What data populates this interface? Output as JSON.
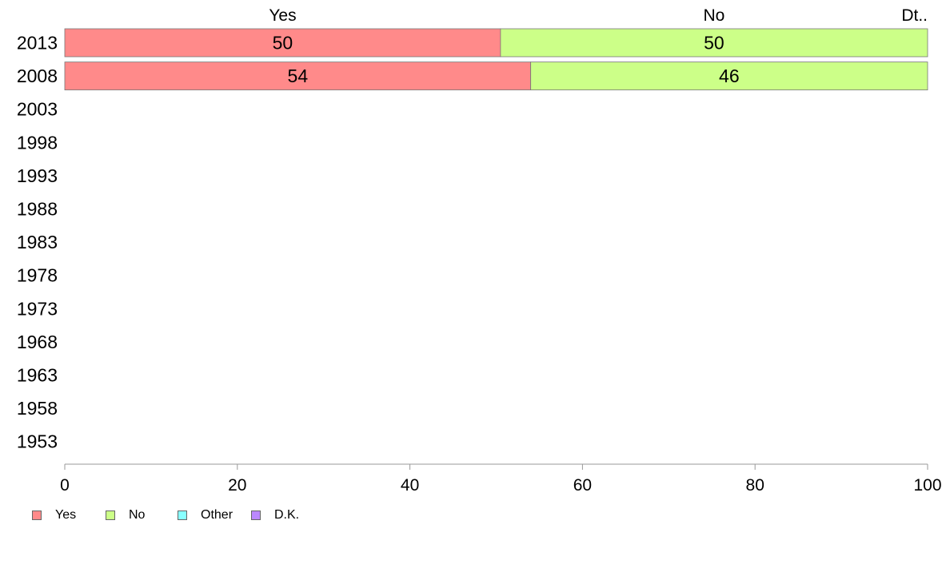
{
  "chart_data": {
    "type": "bar",
    "orientation": "horizontal",
    "stacked": true,
    "categories": [
      "2013",
      "2008",
      "2003",
      "1998",
      "1993",
      "1988",
      "1983",
      "1978",
      "1973",
      "1968",
      "1963",
      "1958",
      "1953"
    ],
    "series": [
      {
        "name": "Yes",
        "color": "#ff8a8a",
        "values": [
          50.5,
          54,
          null,
          null,
          null,
          null,
          null,
          null,
          null,
          null,
          null,
          null,
          null
        ],
        "labels": [
          "50",
          "54"
        ]
      },
      {
        "name": "No",
        "color": "#ccff88",
        "values": [
          49.5,
          46,
          null,
          null,
          null,
          null,
          null,
          null,
          null,
          null,
          null,
          null,
          null
        ],
        "labels": [
          "50",
          "46"
        ]
      },
      {
        "name": "Other",
        "color": "#88ffff",
        "values": [
          0,
          0,
          null,
          null,
          null,
          null,
          null,
          null,
          null,
          null,
          null,
          null,
          null
        ]
      },
      {
        "name": "D.K.",
        "color": "#bb88ff",
        "values": [
          0,
          0,
          null,
          null,
          null,
          null,
          null,
          null,
          null,
          null,
          null,
          null,
          null
        ]
      }
    ],
    "top_labels": [
      "Yes",
      "No",
      "Dt.."
    ],
    "x_ticks": [
      0,
      20,
      40,
      60,
      80,
      100
    ],
    "xlim": [
      0,
      100
    ],
    "grid": false,
    "legend_position": "bottom-left"
  },
  "legend": {
    "items": [
      {
        "label": "Yes",
        "color": "#ff8a8a"
      },
      {
        "label": "No",
        "color": "#ccff88"
      },
      {
        "label": "Other",
        "color": "#88ffff"
      },
      {
        "label": "D.K.",
        "color": "#bb88ff"
      }
    ]
  }
}
